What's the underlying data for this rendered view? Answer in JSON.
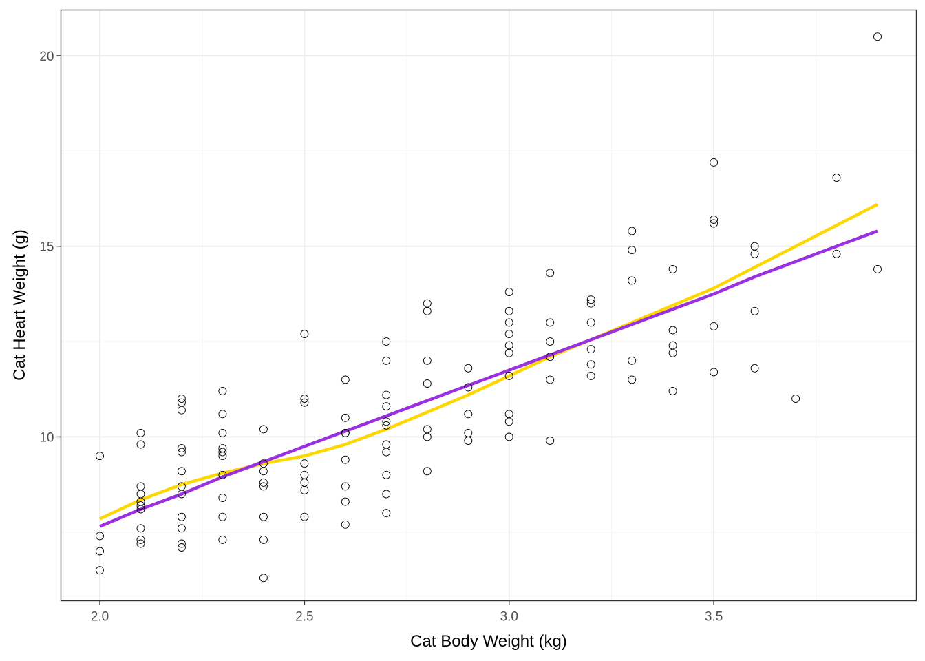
{
  "chart_data": {
    "type": "scatter",
    "title": "",
    "xlabel": "Cat Body Weight (kg)",
    "ylabel": "Cat Heart Weight (g)",
    "xlim": [
      1.905,
      3.995
    ],
    "ylim": [
      5.7,
      21.2
    ],
    "xticks": [
      2.0,
      2.5,
      3.0,
      3.5
    ],
    "xtick_labels": [
      "2.0",
      "2.5",
      "3.0",
      "3.5"
    ],
    "yticks": [
      10,
      15,
      20
    ],
    "ytick_labels": [
      "10",
      "15",
      "20"
    ],
    "x_minor_ticks": [
      2.25,
      2.75,
      3.25,
      3.75
    ],
    "y_minor_ticks": [
      7.5,
      12.5,
      17.5
    ],
    "grid": true,
    "legend": "none",
    "points": {
      "marker": "open-circle",
      "color": "#000000",
      "x": [
        2.0,
        2.0,
        2.0,
        2.0,
        2.1,
        2.1,
        2.1,
        2.1,
        2.1,
        2.1,
        2.1,
        2.1,
        2.1,
        2.1,
        2.2,
        2.2,
        2.2,
        2.2,
        2.2,
        2.2,
        2.2,
        2.2,
        2.2,
        2.2,
        2.2,
        2.2,
        2.3,
        2.3,
        2.3,
        2.3,
        2.3,
        2.3,
        2.3,
        2.3,
        2.3,
        2.3,
        2.4,
        2.4,
        2.4,
        2.4,
        2.4,
        2.4,
        2.4,
        2.4,
        2.5,
        2.5,
        2.5,
        2.5,
        2.5,
        2.5,
        2.5,
        2.5,
        2.6,
        2.6,
        2.6,
        2.6,
        2.6,
        2.6,
        2.6,
        2.6,
        2.7,
        2.7,
        2.7,
        2.7,
        2.7,
        2.7,
        2.7,
        2.7,
        2.7,
        2.7,
        2.7,
        2.8,
        2.8,
        2.8,
        2.8,
        2.8,
        2.8,
        2.8,
        2.9,
        2.9,
        2.9,
        2.9,
        2.9,
        3.0,
        3.0,
        3.0,
        3.0,
        3.0,
        3.0,
        3.0,
        3.0,
        3.0,
        3.0,
        3.1,
        3.1,
        3.1,
        3.1,
        3.1,
        3.1,
        3.2,
        3.2,
        3.2,
        3.2,
        3.2,
        3.2,
        3.3,
        3.3,
        3.3,
        3.3,
        3.3,
        3.4,
        3.4,
        3.4,
        3.4,
        3.4,
        3.5,
        3.5,
        3.5,
        3.5,
        3.5,
        3.6,
        3.6,
        3.6,
        3.6,
        3.7,
        3.8,
        3.8,
        3.9,
        3.9
      ],
      "y": [
        9.5,
        7.4,
        7.0,
        6.5,
        10.1,
        9.8,
        8.7,
        8.5,
        8.3,
        8.1,
        7.6,
        7.3,
        7.2,
        8.2,
        11.0,
        10.9,
        10.7,
        9.7,
        9.6,
        9.1,
        8.7,
        8.5,
        7.9,
        7.6,
        7.2,
        7.1,
        11.2,
        10.6,
        10.1,
        9.7,
        9.6,
        9.5,
        9.0,
        8.4,
        7.9,
        7.3,
        10.2,
        9.3,
        9.1,
        8.8,
        8.7,
        7.9,
        7.3,
        6.3,
        12.7,
        11.0,
        10.9,
        9.3,
        9.0,
        8.8,
        8.6,
        7.9,
        11.5,
        10.5,
        10.1,
        10.1,
        9.4,
        8.7,
        8.3,
        7.7,
        12.5,
        12.0,
        11.1,
        10.8,
        10.4,
        9.8,
        9.6,
        9.0,
        8.5,
        8.0,
        10.3,
        13.5,
        13.3,
        12.0,
        11.4,
        10.2,
        10.0,
        9.1,
        11.8,
        11.3,
        10.6,
        10.1,
        9.9,
        13.8,
        13.3,
        13.0,
        12.7,
        12.4,
        12.2,
        11.6,
        10.6,
        10.4,
        10.0,
        14.3,
        13.0,
        12.5,
        12.1,
        11.5,
        9.9,
        13.6,
        13.5,
        13.0,
        12.3,
        11.9,
        11.6,
        15.4,
        14.9,
        14.1,
        12.0,
        11.5,
        14.4,
        12.8,
        12.4,
        12.2,
        11.2,
        17.2,
        15.7,
        15.6,
        12.9,
        11.7,
        15.0,
        14.8,
        13.3,
        11.8,
        11.0,
        16.8,
        14.8,
        20.5,
        14.4
      ]
    },
    "series": [
      {
        "kind": "smooth",
        "color": "#FFD700",
        "x": [
          2.0,
          2.1,
          2.2,
          2.3,
          2.4,
          2.5,
          2.6,
          2.7,
          2.8,
          2.9,
          3.0,
          3.1,
          3.2,
          3.3,
          3.4,
          3.5,
          3.6,
          3.7,
          3.8,
          3.9
        ],
        "y": [
          7.85,
          8.35,
          8.75,
          9.05,
          9.3,
          9.5,
          9.8,
          10.2,
          10.65,
          11.1,
          11.6,
          12.1,
          12.55,
          13.0,
          13.45,
          13.9,
          14.45,
          15.0,
          15.55,
          16.1
        ]
      },
      {
        "kind": "smooth",
        "color": "#9B30E0",
        "x": [
          2.0,
          2.1,
          2.2,
          2.3,
          2.4,
          2.5,
          2.6,
          2.7,
          2.8,
          2.9,
          3.0,
          3.1,
          3.2,
          3.3,
          3.4,
          3.5,
          3.6,
          3.7,
          3.8,
          3.9
        ],
        "y": [
          7.65,
          8.1,
          8.5,
          8.95,
          9.35,
          9.75,
          10.15,
          10.55,
          10.95,
          11.35,
          11.75,
          12.15,
          12.55,
          12.95,
          13.35,
          13.75,
          14.2,
          14.6,
          15.0,
          15.4
        ]
      }
    ],
    "colors": {
      "panel_border": "#333333",
      "grid_major": "#ebebeb",
      "grid_minor": "#f5f5f5"
    }
  }
}
